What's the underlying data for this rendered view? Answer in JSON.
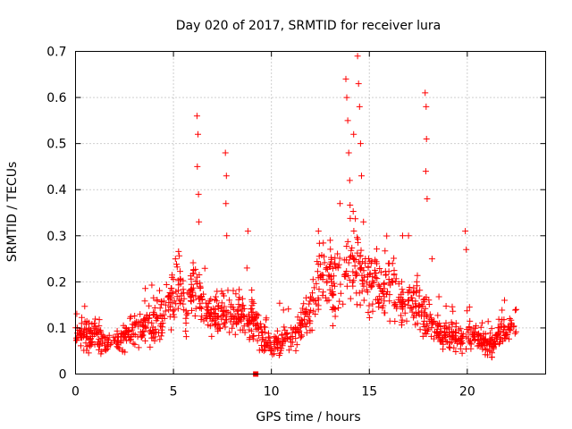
{
  "chart_data": {
    "type": "scatter",
    "title": "Day 020 of 2017, SRMTID for receiver lura",
    "xlabel": "GPS time / hours",
    "ylabel": "SRMTID / TECUs",
    "xlim": [
      0,
      24
    ],
    "ylim": [
      0,
      0.7
    ],
    "x_ticks": [
      0,
      5,
      10,
      15,
      20
    ],
    "y_ticks": [
      0,
      0.1,
      0.2,
      0.3,
      0.4,
      0.5,
      0.6,
      0.7
    ],
    "x_tick_labels": [
      "0",
      "5",
      "10",
      "15",
      "20"
    ],
    "y_tick_labels": [
      "0",
      "0.1",
      "0.2",
      "0.3",
      "0.4",
      "0.5",
      "0.6",
      "0.7"
    ],
    "grid": true,
    "marker": "+",
    "color": "#ff0000",
    "series": [
      {
        "name": "SRMTID",
        "profile_hours": [
          0,
          0.5,
          1,
          1.5,
          2,
          2.5,
          3,
          3.5,
          4,
          4.5,
          5,
          5.3,
          5.6,
          6,
          6.5,
          7,
          7.5,
          8,
          8.5,
          9,
          9.5,
          10,
          10.5,
          11,
          11.5,
          12,
          12.5,
          13,
          13.5,
          14,
          14.5,
          15,
          15.5,
          16,
          16.5,
          17,
          17.5,
          18,
          18.5,
          19,
          19.5,
          20,
          20.5,
          21,
          21.5,
          22,
          22.5
        ],
        "profile_typical": [
          0.08,
          0.09,
          0.08,
          0.07,
          0.06,
          0.08,
          0.1,
          0.1,
          0.1,
          0.12,
          0.19,
          0.2,
          0.12,
          0.18,
          0.16,
          0.12,
          0.13,
          0.12,
          0.13,
          0.12,
          0.08,
          0.06,
          0.07,
          0.08,
          0.1,
          0.15,
          0.2,
          0.2,
          0.22,
          0.24,
          0.23,
          0.2,
          0.18,
          0.2,
          0.16,
          0.15,
          0.15,
          0.12,
          0.09,
          0.08,
          0.08,
          0.08,
          0.08,
          0.06,
          0.07,
          0.1,
          0.1
        ],
        "spike_points": [
          [
            5.1,
            0.25
          ],
          [
            6.2,
            0.56
          ],
          [
            6.25,
            0.52
          ],
          [
            6.22,
            0.45
          ],
          [
            6.28,
            0.39
          ],
          [
            6.3,
            0.33
          ],
          [
            7.65,
            0.48
          ],
          [
            7.7,
            0.43
          ],
          [
            7.68,
            0.37
          ],
          [
            7.72,
            0.3
          ],
          [
            8.8,
            0.31
          ],
          [
            8.75,
            0.23
          ],
          [
            12.4,
            0.31
          ],
          [
            13.0,
            0.29
          ],
          [
            13.5,
            0.37
          ],
          [
            13.8,
            0.64
          ],
          [
            13.85,
            0.6
          ],
          [
            13.9,
            0.55
          ],
          [
            13.95,
            0.48
          ],
          [
            14.0,
            0.42
          ],
          [
            14.2,
            0.52
          ],
          [
            14.4,
            0.69
          ],
          [
            14.45,
            0.63
          ],
          [
            14.5,
            0.58
          ],
          [
            14.55,
            0.5
          ],
          [
            14.6,
            0.43
          ],
          [
            14.7,
            0.33
          ],
          [
            16.7,
            0.3
          ],
          [
            17.0,
            0.3
          ],
          [
            17.85,
            0.61
          ],
          [
            17.9,
            0.58
          ],
          [
            17.92,
            0.51
          ],
          [
            17.88,
            0.44
          ],
          [
            17.95,
            0.38
          ],
          [
            18.2,
            0.25
          ],
          [
            19.9,
            0.31
          ],
          [
            19.95,
            0.27
          ],
          [
            21.9,
            0.16
          ],
          [
            22.5,
            0.14
          ]
        ],
        "count": 1300
      }
    ],
    "marker_points": [
      [
        9.2,
        0.0
      ]
    ]
  }
}
